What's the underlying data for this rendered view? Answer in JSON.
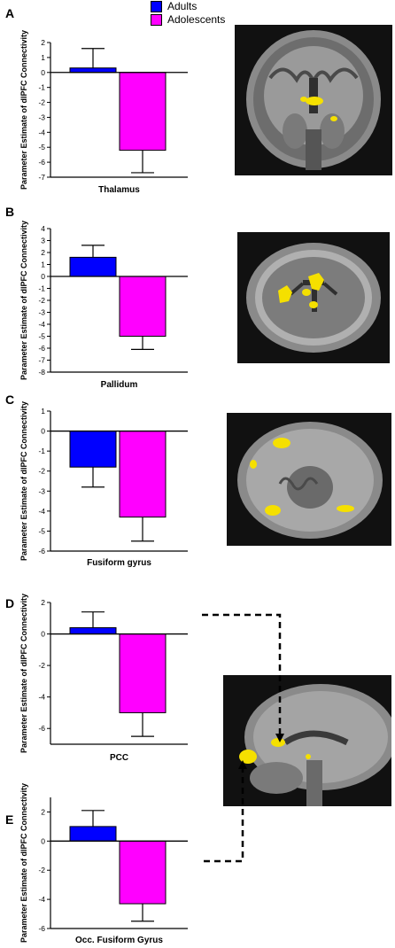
{
  "legend": {
    "items": [
      {
        "label": "Adults",
        "color": "#0000ff"
      },
      {
        "label": "Adolescents",
        "color": "#ff00ff"
      }
    ]
  },
  "colors": {
    "adults": "#0000ff",
    "adolescents": "#ff00ff",
    "brain_highlight": "#f5e000"
  },
  "chart_data": [
    {
      "type": "bar",
      "panel_label": "A",
      "categories": [
        "Adults",
        "Adolescents"
      ],
      "values": [
        0.3,
        -5.2
      ],
      "errors": [
        1.3,
        1.5
      ],
      "xlabel": "Thalamus",
      "ylabel": "Parameter Estimate of dlPFC Connectivity",
      "ylim": [
        -7,
        2
      ],
      "yticks": [
        2,
        1,
        0,
        -1,
        -2,
        -3,
        -4,
        -5,
        -6,
        -7
      ]
    },
    {
      "type": "bar",
      "panel_label": "B",
      "categories": [
        "Adults",
        "Adolescents"
      ],
      "values": [
        1.6,
        -5.0
      ],
      "errors": [
        1.0,
        1.1
      ],
      "xlabel": "Pallidum",
      "ylabel": "Parameter Estimate of dlPFC Connectivity",
      "ylim": [
        -8,
        4
      ],
      "yticks": [
        4,
        3,
        2,
        1,
        0,
        -1,
        -2,
        -3,
        -4,
        -5,
        -6,
        -7,
        -8
      ]
    },
    {
      "type": "bar",
      "panel_label": "C",
      "categories": [
        "Adults",
        "Adolescents"
      ],
      "values": [
        -1.8,
        -4.3
      ],
      "errors": [
        1.0,
        1.2
      ],
      "xlabel": "Fusiform gyrus",
      "ylabel": "Parameter Estimate of dlPFC Connectivity",
      "ylim": [
        -6,
        1
      ],
      "yticks": [
        1,
        0,
        -1,
        -2,
        -3,
        -4,
        -5,
        -6
      ]
    },
    {
      "type": "bar",
      "panel_label": "D",
      "categories": [
        "Adults",
        "Adolescents"
      ],
      "values": [
        0.4,
        -5.0
      ],
      "errors": [
        1.0,
        1.5
      ],
      "xlabel": "PCC",
      "ylabel": "Parameter Estimate of dlPFC Connectivity",
      "ylim": [
        -7,
        2
      ],
      "yticks": [
        2,
        0,
        -2,
        -4,
        -6
      ]
    },
    {
      "type": "bar",
      "panel_label": "E",
      "categories": [
        "Adults",
        "Adolescents"
      ],
      "values": [
        1.0,
        -4.3
      ],
      "errors": [
        1.1,
        1.2
      ],
      "xlabel": "Occ. Fusiform Gyrus",
      "ylabel": "Parameter Estimate of dlPFC Connectivity",
      "ylim": [
        -6,
        3
      ],
      "yticks": [
        2,
        0,
        -2,
        -4,
        -6
      ]
    }
  ]
}
